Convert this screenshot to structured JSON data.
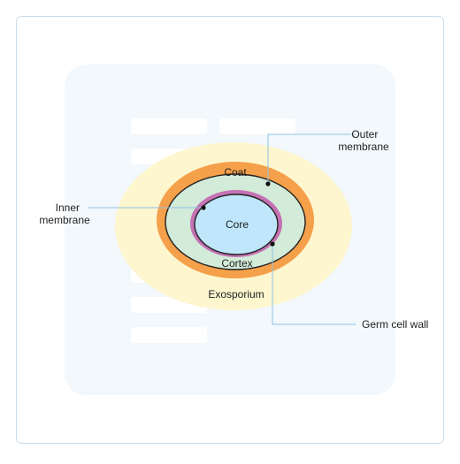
{
  "diagram": {
    "layers": {
      "coat": "Coat",
      "core": "Core",
      "cortex": "Cortex",
      "exosporium": "Exosporium"
    },
    "callouts": {
      "outer_membrane": [
        "Outer",
        "membrane"
      ],
      "inner_membrane": [
        "Inner",
        "membrane"
      ],
      "germ_cell_wall": "Germ cell wall"
    }
  },
  "colors": {
    "frame_border": "#c9dbe6",
    "panel_bg": "#f2f8fc",
    "placeholder_bar": "#ffffff",
    "exosporium": "#fdf6cf",
    "coat": "#f5a04a",
    "cortex": "#d3ebd9",
    "germ_cell_wall": "#c472b4",
    "core": "#bfe6fa",
    "outline": "#222222",
    "leader_line": "#8ec3e2",
    "text": "#1f1f1f"
  }
}
